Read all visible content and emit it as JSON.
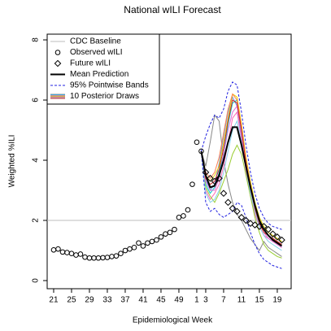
{
  "chart_data": {
    "type": "line",
    "title": "National wILI Forecast",
    "x_label": "Epidemiological Week",
    "y_label": "Weighted %ILI",
    "xlim": [
      -1.45,
      53.1
    ],
    "ylim": [
      -0.27,
      8.19
    ],
    "xticks": [
      {
        "value": 0,
        "label": "21"
      },
      {
        "value": 4,
        "label": "25"
      },
      {
        "value": 8,
        "label": "29"
      },
      {
        "value": 12,
        "label": "33"
      },
      {
        "value": 16,
        "label": "37"
      },
      {
        "value": 20,
        "label": "41"
      },
      {
        "value": 24,
        "label": "45"
      },
      {
        "value": 28,
        "label": "49"
      },
      {
        "value": 32,
        "label": "1"
      },
      {
        "value": 34,
        "label": "3"
      },
      {
        "value": 38,
        "label": "7"
      },
      {
        "value": 42,
        "label": "11"
      },
      {
        "value": 46,
        "label": "15"
      },
      {
        "value": 50,
        "label": "19"
      }
    ],
    "yticks": [
      0,
      2,
      4,
      6,
      8
    ],
    "baseline": {
      "name": "CDC Baseline",
      "value": 2.0,
      "color": "#bebebe"
    },
    "observed": {
      "name": "Observed wILI",
      "color": "#000000",
      "x": [
        0,
        1,
        2,
        3,
        4,
        5,
        6,
        7,
        8,
        9,
        10,
        11,
        12,
        13,
        14,
        15,
        16,
        17,
        18,
        19,
        20,
        21,
        22,
        23,
        24,
        25,
        26,
        27,
        28,
        29,
        30,
        31,
        32,
        33
      ],
      "values": [
        1.02,
        1.05,
        0.95,
        0.93,
        0.9,
        0.85,
        0.88,
        0.78,
        0.75,
        0.75,
        0.75,
        0.76,
        0.77,
        0.8,
        0.82,
        0.9,
        1.0,
        1.05,
        1.1,
        1.25,
        1.15,
        1.25,
        1.3,
        1.35,
        1.45,
        1.55,
        1.6,
        1.7,
        2.1,
        2.15,
        2.35,
        3.2,
        4.6,
        4.3
      ]
    },
    "future": {
      "name": "Future wILI",
      "color": "#000000",
      "x": [
        34,
        35,
        36,
        37,
        38,
        39,
        40,
        41,
        42,
        43,
        44,
        45,
        46,
        47,
        48,
        49,
        50,
        51
      ],
      "values": [
        3.6,
        3.4,
        3.3,
        3.4,
        2.9,
        2.6,
        2.4,
        2.3,
        2.1,
        2.0,
        1.9,
        1.85,
        1.8,
        1.8,
        1.7,
        1.55,
        1.45,
        1.35
      ]
    },
    "forecast_x": [
      33,
      34,
      35,
      36,
      37,
      38,
      39,
      40,
      41,
      42,
      43,
      44,
      45,
      46,
      47,
      48,
      49,
      50,
      51
    ],
    "mean": {
      "name": "Mean Prediction",
      "color": "#000000",
      "values": [
        4.3,
        3.5,
        3.1,
        3.15,
        3.5,
        4.0,
        4.6,
        5.1,
        5.1,
        4.5,
        3.8,
        3.1,
        2.5,
        2.0,
        1.7,
        1.5,
        1.35,
        1.25,
        1.15
      ]
    },
    "bands": {
      "name": "95% Pointwise Bands",
      "color": "#2020e0",
      "upper": [
        4.3,
        4.8,
        5.2,
        5.5,
        5.4,
        5.7,
        6.3,
        6.6,
        6.5,
        5.6,
        4.5,
        3.6,
        2.9,
        2.4,
        2.1,
        1.9,
        1.8,
        1.75,
        1.7
      ],
      "lower": [
        4.3,
        2.6,
        2.3,
        2.4,
        2.2,
        2.1,
        2.2,
        2.3,
        2.6,
        2.5,
        2.1,
        1.6,
        1.2,
        0.9,
        0.7,
        0.6,
        0.5,
        0.45,
        0.4
      ]
    },
    "draws": {
      "name": "10 Posterior Draws",
      "colors": [
        "#888888",
        "#6495ed",
        "#00cdcd",
        "#ff69b4",
        "#e6d200",
        "#9acd32",
        "#da70d6",
        "#ff7f50",
        "#87ceeb",
        "#cd2626"
      ],
      "values": [
        [
          4.3,
          3.8,
          4.6,
          5.5,
          5.3,
          4.0,
          3.2,
          2.6,
          2.2,
          2.0,
          1.7,
          1.4,
          1.2,
          1.0,
          1.3,
          1.1,
          1.0,
          0.9,
          0.8
        ],
        [
          4.3,
          3.4,
          3.0,
          3.2,
          3.9,
          4.8,
          5.6,
          6.1,
          5.8,
          4.8,
          3.8,
          3.0,
          2.3,
          1.9,
          1.7,
          1.5,
          1.4,
          1.3,
          1.2
        ],
        [
          4.3,
          3.2,
          2.9,
          3.1,
          3.6,
          4.2,
          5.2,
          5.9,
          6.0,
          5.0,
          4.0,
          3.2,
          2.5,
          2.0,
          1.7,
          1.5,
          1.4,
          1.3,
          1.2
        ],
        [
          4.3,
          3.0,
          2.7,
          2.9,
          3.2,
          3.8,
          4.6,
          5.4,
          5.6,
          4.7,
          3.6,
          2.8,
          2.2,
          1.8,
          1.5,
          1.4,
          1.3,
          1.2,
          1.1
        ],
        [
          4.3,
          3.5,
          3.3,
          3.5,
          3.8,
          4.6,
          5.4,
          6.2,
          6.1,
          5.2,
          4.1,
          3.3,
          2.6,
          2.1,
          1.8,
          1.6,
          1.5,
          1.4,
          1.3
        ],
        [
          4.3,
          3.1,
          2.8,
          2.6,
          2.9,
          3.3,
          3.7,
          4.2,
          4.5,
          4.2,
          3.5,
          2.8,
          2.1,
          1.6,
          1.2,
          1.0,
          0.9,
          0.8,
          0.75
        ],
        [
          4.3,
          3.3,
          3.0,
          3.0,
          3.4,
          4.2,
          5.0,
          5.6,
          5.8,
          5.0,
          3.9,
          3.0,
          2.4,
          1.9,
          1.6,
          1.4,
          1.3,
          1.2,
          1.1
        ],
        [
          4.3,
          3.6,
          3.4,
          3.6,
          4.1,
          4.9,
          5.7,
          6.2,
          6.0,
          5.1,
          4.0,
          3.2,
          2.5,
          2.0,
          1.7,
          1.5,
          1.4,
          1.3,
          1.2
        ],
        [
          4.3,
          2.9,
          2.6,
          2.7,
          3.0,
          3.6,
          4.3,
          5.0,
          5.3,
          4.6,
          3.7,
          2.9,
          2.3,
          1.8,
          1.5,
          1.3,
          1.2,
          1.1,
          1.0
        ],
        [
          4.3,
          3.4,
          3.2,
          3.3,
          3.7,
          4.4,
          5.3,
          6.0,
          5.9,
          5.0,
          3.9,
          3.1,
          2.4,
          1.9,
          1.6,
          1.5,
          1.4,
          1.3,
          1.2
        ]
      ]
    }
  }
}
